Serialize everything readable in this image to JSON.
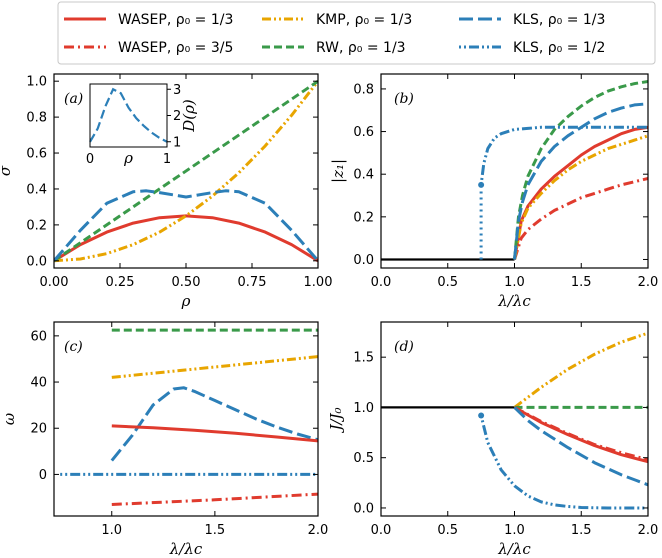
{
  "colors": {
    "red": "#e03b2e",
    "orange": "#e8a500",
    "green": "#3a9a4a",
    "blue": "#2c7fb8",
    "black": "#000000"
  },
  "legend": {
    "placement": "top",
    "entries": [
      {
        "name": "WASEP, ρ₀ = 1/3",
        "color": "#e03b2e",
        "dash": "solid"
      },
      {
        "name": "KMP, ρ₀ = 1/3",
        "color": "#e8a500",
        "dash": "dashdotdot"
      },
      {
        "name": "KLS, ρ₀ = 1/3",
        "color": "#2c7fb8",
        "dash": "longdash"
      },
      {
        "name": "WASEP, ρ₀ = 3/5",
        "color": "#e03b2e",
        "dash": "dashdot"
      },
      {
        "name": "RW, ρ₀ = 1/3",
        "color": "#3a9a4a",
        "dash": "dashed"
      },
      {
        "name": "KLS, ρ₀ = 1/2",
        "color": "#2c7fb8",
        "dash": "dotdotdash"
      }
    ]
  },
  "chart_data": [
    {
      "panel": "(a)",
      "type": "line",
      "xlabel": "ρ",
      "ylabel": "σ",
      "xlim": [
        0,
        1
      ],
      "ylim": [
        -0.04,
        1.04
      ],
      "xticks": [
        "0.00",
        "0.25",
        "0.50",
        "0.75",
        "1.00"
      ],
      "yticks": [
        "0.0",
        "0.2",
        "0.4",
        "0.6",
        "0.8",
        "1.0"
      ],
      "series": [
        {
          "name": "WASEP",
          "style": "red-solid",
          "x": [
            0,
            0.1,
            0.2,
            0.3,
            0.4,
            0.5,
            0.6,
            0.7,
            0.8,
            0.9,
            1.0
          ],
          "y": [
            0,
            0.09,
            0.16,
            0.21,
            0.24,
            0.25,
            0.24,
            0.21,
            0.16,
            0.09,
            0
          ]
        },
        {
          "name": "KMP",
          "style": "orange-dashdotdot",
          "x": [
            0,
            0.1,
            0.2,
            0.3,
            0.4,
            0.5,
            0.6,
            0.7,
            0.8,
            0.9,
            1.0
          ],
          "y": [
            0,
            0.01,
            0.04,
            0.09,
            0.16,
            0.25,
            0.36,
            0.49,
            0.64,
            0.81,
            1.0
          ]
        },
        {
          "name": "RW",
          "style": "green-dashed",
          "x": [
            0,
            1
          ],
          "y": [
            0,
            1
          ]
        },
        {
          "name": "KLS",
          "style": "blue-longdash",
          "x": [
            0,
            0.1,
            0.2,
            0.3,
            0.35,
            0.4,
            0.5,
            0.6,
            0.65,
            0.7,
            0.8,
            0.9,
            1.0
          ],
          "y": [
            0,
            0.17,
            0.32,
            0.385,
            0.39,
            0.38,
            0.355,
            0.38,
            0.39,
            0.385,
            0.32,
            0.17,
            0
          ]
        }
      ],
      "inset": {
        "xlabel": "ρ",
        "ylabel": "D(ρ)",
        "xlim": [
          0,
          1
        ],
        "ylim": [
          0.8,
          3.2
        ],
        "xticks": [
          "0",
          "1"
        ],
        "yticks": [
          "1",
          "2",
          "3"
        ],
        "series": [
          {
            "name": "KLS",
            "style": "blue-longdash",
            "x": [
              0,
              0.1,
              0.2,
              0.3,
              0.4,
              0.5,
              0.6,
              0.7,
              0.8,
              0.9,
              1.0
            ],
            "y": [
              1.0,
              1.5,
              2.35,
              3.0,
              2.85,
              2.3,
              1.9,
              1.6,
              1.35,
              1.15,
              1.0
            ]
          }
        ]
      }
    },
    {
      "panel": "(b)",
      "type": "line",
      "xlabel": "λ/λc",
      "ylabel": "|z₁|",
      "xlim": [
        0,
        2
      ],
      "ylim": [
        -0.04,
        0.87
      ],
      "xticks": [
        "0.0",
        "0.5",
        "1.0",
        "1.5",
        "2.0"
      ],
      "yticks": [
        "0.0",
        "0.2",
        "0.4",
        "0.6",
        "0.8"
      ],
      "series": [
        {
          "name": "baseline",
          "style": "black-solid",
          "x": [
            0,
            1
          ],
          "y": [
            0,
            0
          ]
        },
        {
          "name": "WASEP ρ0=1/3",
          "style": "red-solid",
          "x": [
            1.0,
            1.05,
            1.1,
            1.2,
            1.3,
            1.4,
            1.5,
            1.6,
            1.7,
            1.8,
            1.9,
            2.0
          ],
          "y": [
            0,
            0.18,
            0.25,
            0.33,
            0.39,
            0.44,
            0.49,
            0.53,
            0.56,
            0.59,
            0.61,
            0.62
          ]
        },
        {
          "name": "WASEP ρ0=3/5",
          "style": "red-dashdot",
          "x": [
            1.0,
            1.05,
            1.1,
            1.2,
            1.3,
            1.4,
            1.5,
            1.6,
            1.7,
            1.8,
            1.9,
            2.0
          ],
          "y": [
            0,
            0.1,
            0.14,
            0.19,
            0.23,
            0.26,
            0.29,
            0.31,
            0.33,
            0.35,
            0.365,
            0.38
          ]
        },
        {
          "name": "KMP",
          "style": "orange-dashdotdot",
          "x": [
            1.0,
            1.05,
            1.1,
            1.2,
            1.3,
            1.4,
            1.5,
            1.6,
            1.7,
            1.8,
            1.9,
            2.0
          ],
          "y": [
            0,
            0.17,
            0.24,
            0.31,
            0.37,
            0.42,
            0.46,
            0.49,
            0.52,
            0.54,
            0.56,
            0.58
          ]
        },
        {
          "name": "RW",
          "style": "green-dashed",
          "x": [
            1.0,
            1.03,
            1.06,
            1.1,
            1.2,
            1.3,
            1.4,
            1.5,
            1.6,
            1.7,
            1.8,
            1.9,
            2.0
          ],
          "y": [
            0,
            0.2,
            0.3,
            0.39,
            0.52,
            0.61,
            0.67,
            0.72,
            0.76,
            0.79,
            0.81,
            0.825,
            0.835
          ]
        },
        {
          "name": "KLS ρ0=1/3",
          "style": "blue-longdash",
          "x": [
            1.0,
            1.03,
            1.06,
            1.1,
            1.2,
            1.3,
            1.4,
            1.5,
            1.6,
            1.7,
            1.8,
            1.9,
            2.0
          ],
          "y": [
            0,
            0.18,
            0.27,
            0.35,
            0.46,
            0.53,
            0.58,
            0.62,
            0.66,
            0.69,
            0.71,
            0.725,
            0.73
          ]
        },
        {
          "name": "KLS ρ0=1/2",
          "style": "blue-dotdotdash",
          "x": [
            0.75,
            0.77,
            0.8,
            0.85,
            0.9,
            1.0,
            1.1,
            1.2,
            1.4,
            1.6,
            1.8,
            2.0
          ],
          "y": [
            0.35,
            0.45,
            0.52,
            0.57,
            0.59,
            0.61,
            0.615,
            0.62,
            0.62,
            0.62,
            0.62,
            0.62
          ]
        },
        {
          "name": "KLS ρ0=1/2 branch",
          "style": "blue-dotted",
          "x": [
            0.75,
            0.75
          ],
          "y": [
            0,
            0.35
          ]
        }
      ],
      "markers": [
        {
          "x": 0.75,
          "y": 0.35,
          "color": "#2c7fb8"
        }
      ]
    },
    {
      "panel": "(c)",
      "type": "line",
      "xlabel": "λ/λc",
      "ylabel": "ω",
      "xlim": [
        0.72,
        2.0
      ],
      "ylim": [
        -18,
        66
      ],
      "xticks": [
        "1.0",
        "1.5",
        "2.0"
      ],
      "yticks": [
        "0",
        "20",
        "40",
        "60"
      ],
      "series": [
        {
          "name": "RW",
          "style": "green-dashed",
          "x": [
            1.0,
            2.0
          ],
          "y": [
            62.5,
            62.5
          ]
        },
        {
          "name": "KMP",
          "style": "orange-dashdotdot",
          "x": [
            1.0,
            2.0
          ],
          "y": [
            42,
            51
          ]
        },
        {
          "name": "KLS ρ0=1/3",
          "style": "blue-longdash",
          "x": [
            1.0,
            1.1,
            1.2,
            1.3,
            1.35,
            1.4,
            1.5,
            1.6,
            1.7,
            1.8,
            1.9,
            2.0
          ],
          "y": [
            6,
            17,
            30,
            37,
            37.5,
            36,
            32,
            28,
            24,
            20.5,
            17.5,
            15
          ]
        },
        {
          "name": "WASEP ρ0=1/3",
          "style": "red-solid",
          "x": [
            1.0,
            1.2,
            1.4,
            1.6,
            1.8,
            2.0
          ],
          "y": [
            21,
            20.2,
            19.1,
            17.8,
            16.2,
            14.5
          ]
        },
        {
          "name": "KLS ρ0=1/2",
          "style": "blue-dotdotdash",
          "x": [
            0.75,
            2.0
          ],
          "y": [
            0,
            0
          ]
        },
        {
          "name": "WASEP ρ0=3/5",
          "style": "red-dashdot",
          "x": [
            1.0,
            1.5,
            2.0
          ],
          "y": [
            -13,
            -11,
            -8.5
          ]
        }
      ]
    },
    {
      "panel": "(d)",
      "type": "line",
      "xlabel": "λ/λc",
      "ylabel": "J/J₀",
      "xlim": [
        0,
        2
      ],
      "ylim": [
        -0.08,
        1.85
      ],
      "xticks": [
        "0.0",
        "0.5",
        "1.0",
        "1.5",
        "2.0"
      ],
      "yticks": [
        "0.0",
        "0.5",
        "1.0",
        "1.5"
      ],
      "series": [
        {
          "name": "baseline",
          "style": "black-solid",
          "x": [
            0,
            1
          ],
          "y": [
            1,
            1
          ]
        },
        {
          "name": "KMP",
          "style": "orange-dashdotdot",
          "x": [
            1.0,
            1.2,
            1.4,
            1.6,
            1.8,
            2.0
          ],
          "y": [
            1.0,
            1.2,
            1.38,
            1.53,
            1.65,
            1.74
          ]
        },
        {
          "name": "RW",
          "style": "green-dashed",
          "x": [
            1.0,
            2.0
          ],
          "y": [
            1.0,
            1.0
          ]
        },
        {
          "name": "WASEP ρ0=1/3",
          "style": "red-solid",
          "x": [
            1.0,
            1.2,
            1.4,
            1.6,
            1.8,
            2.0
          ],
          "y": [
            1.0,
            0.85,
            0.73,
            0.62,
            0.53,
            0.46
          ]
        },
        {
          "name": "WASEP ρ0=3/5",
          "style": "red-dashdot",
          "x": [
            1.0,
            1.2,
            1.4,
            1.6,
            1.8,
            2.0
          ],
          "y": [
            1.0,
            0.86,
            0.74,
            0.63,
            0.55,
            0.48
          ]
        },
        {
          "name": "KLS ρ0=1/3",
          "style": "blue-longdash",
          "x": [
            1.0,
            1.1,
            1.2,
            1.4,
            1.6,
            1.8,
            2.0
          ],
          "y": [
            1.0,
            0.87,
            0.77,
            0.6,
            0.45,
            0.33,
            0.23
          ]
        },
        {
          "name": "KLS ρ0=1/2",
          "style": "blue-dotdotdash",
          "x": [
            0.75,
            0.8,
            0.9,
            1.0,
            1.1,
            1.2,
            1.3,
            1.4,
            1.5,
            1.7,
            2.0
          ],
          "y": [
            0.92,
            0.65,
            0.38,
            0.22,
            0.12,
            0.06,
            0.03,
            0.015,
            0.005,
            0.0,
            0.0
          ]
        }
      ],
      "markers": [
        {
          "x": 0.75,
          "y": 0.92,
          "color": "#2c7fb8"
        }
      ]
    }
  ]
}
